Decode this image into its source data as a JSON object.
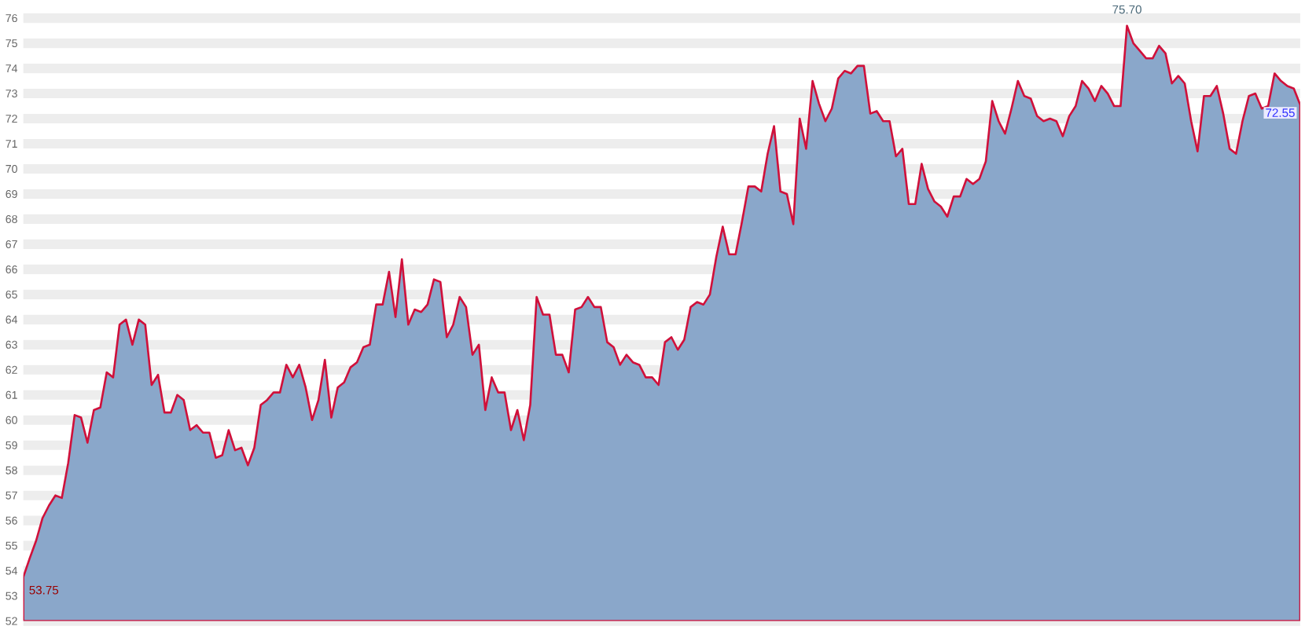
{
  "chart_data": {
    "type": "area",
    "categories": [
      null,
      null,
      null,
      null,
      null,
      null,
      null,
      null,
      null,
      null,
      null,
      null,
      null,
      null,
      null,
      null,
      null,
      null,
      null,
      null,
      null,
      null,
      null,
      null,
      null,
      null,
      null,
      null,
      null,
      null,
      null,
      null,
      null,
      null,
      null,
      null,
      null,
      null,
      null,
      null,
      null,
      null,
      null,
      null,
      null,
      null,
      null,
      null,
      null,
      null,
      null,
      null,
      null,
      null,
      null,
      null,
      null,
      null,
      null,
      null,
      null,
      null,
      null,
      null,
      null,
      null,
      null,
      null,
      null,
      null,
      null,
      null,
      null,
      null,
      null,
      null,
      null,
      null,
      null,
      null,
      null,
      null,
      null,
      null,
      null,
      null,
      null,
      null,
      null,
      null,
      null,
      null,
      null,
      null,
      null,
      null,
      null,
      null,
      null,
      null,
      null,
      null,
      null,
      null,
      null,
      null,
      null,
      null,
      null,
      null,
      null,
      null,
      null,
      null,
      null,
      null,
      null,
      null,
      null,
      null,
      null,
      null,
      null,
      null,
      null,
      null,
      null,
      null,
      null,
      null,
      null,
      null,
      null,
      null,
      null,
      null,
      null,
      null,
      null,
      null,
      null,
      null,
      null,
      null,
      null,
      null,
      null,
      null,
      null,
      null,
      null,
      null,
      null,
      null,
      null,
      null,
      null,
      null,
      null,
      null,
      null,
      null,
      null,
      null,
      null,
      null,
      null,
      null,
      null,
      null,
      null,
      null,
      null,
      null,
      null,
      null,
      null,
      null,
      null,
      null,
      null,
      null,
      null,
      null,
      null,
      null,
      null,
      null,
      null,
      null,
      null,
      null,
      null,
      null,
      null,
      null,
      null,
      null,
      null,
      null
    ],
    "series": [
      {
        "color": "#8aa7ca",
        "values": [
          53.75,
          54.5,
          55.2,
          56.1,
          56.6,
          57.0,
          56.9,
          58.3,
          60.2,
          60.1,
          59.1,
          60.4,
          60.5,
          61.9,
          61.7,
          63.8,
          64.0,
          63.0,
          64.0,
          63.8,
          61.4,
          61.8,
          60.3,
          60.3,
          61.0,
          60.8,
          59.6,
          59.8,
          59.5,
          59.5,
          58.5,
          58.6,
          59.6,
          58.8,
          58.9,
          58.2,
          58.9,
          60.6,
          60.8,
          61.1,
          61.1,
          62.2,
          61.7,
          62.2,
          61.3,
          60.0,
          60.8,
          62.4,
          60.1,
          61.3,
          61.5,
          62.1,
          62.3,
          62.9,
          63.0,
          64.6,
          64.6,
          65.9,
          64.1,
          66.4,
          63.8,
          64.4,
          64.3,
          64.6,
          65.6,
          65.5,
          63.3,
          63.8,
          64.9,
          64.5,
          62.6,
          63.0,
          60.4,
          61.7,
          61.1,
          61.1,
          59.6,
          60.4,
          59.2,
          60.6,
          64.9,
          64.2,
          64.2,
          62.6,
          62.6,
          61.9,
          64.4,
          64.5,
          64.9,
          64.5,
          64.5,
          63.1,
          62.9,
          62.2,
          62.6,
          62.3,
          62.2,
          61.7,
          61.7,
          61.4,
          63.1,
          63.3,
          62.8,
          63.2,
          64.5,
          64.7,
          64.6,
          65.0,
          66.5,
          67.7,
          66.6,
          66.6,
          67.9,
          69.3,
          69.3,
          69.1,
          70.6,
          71.7,
          69.1,
          69.0,
          67.8,
          72.0,
          70.8,
          73.5,
          72.6,
          71.9,
          72.4,
          73.6,
          73.9,
          73.8,
          74.1,
          74.1,
          72.2,
          72.3,
          71.9,
          71.9,
          70.5,
          70.8,
          68.6,
          68.6,
          70.2,
          69.2,
          68.7,
          68.5,
          68.1,
          68.9,
          68.9,
          69.6,
          69.4,
          69.6,
          70.3,
          72.7,
          71.9,
          71.4,
          72.4,
          73.5,
          72.9,
          72.8,
          72.1,
          71.9,
          72.0,
          71.9,
          71.3,
          72.1,
          72.5,
          73.5,
          73.2,
          72.7,
          73.3,
          73.0,
          72.5,
          72.5,
          75.7,
          75.0,
          74.7,
          74.4,
          74.4,
          74.9,
          74.6,
          73.4,
          73.7,
          73.4,
          71.9,
          70.7,
          72.9,
          72.9,
          73.3,
          72.2,
          70.8,
          70.6,
          71.9,
          72.9,
          73.0,
          72.4,
          72.5,
          73.8,
          73.5,
          73.3,
          73.2,
          72.55
        ]
      }
    ],
    "ylim": [
      52,
      76
    ],
    "yticks": [
      52,
      53,
      54,
      55,
      56,
      57,
      58,
      59,
      60,
      61,
      62,
      63,
      64,
      65,
      66,
      67,
      68,
      69,
      70,
      71,
      72,
      73,
      74,
      75,
      76
    ],
    "grid": "y",
    "tick_labels": "y",
    "annotations": [
      "75.70",
      "53.75",
      "72.55"
    ]
  }
}
